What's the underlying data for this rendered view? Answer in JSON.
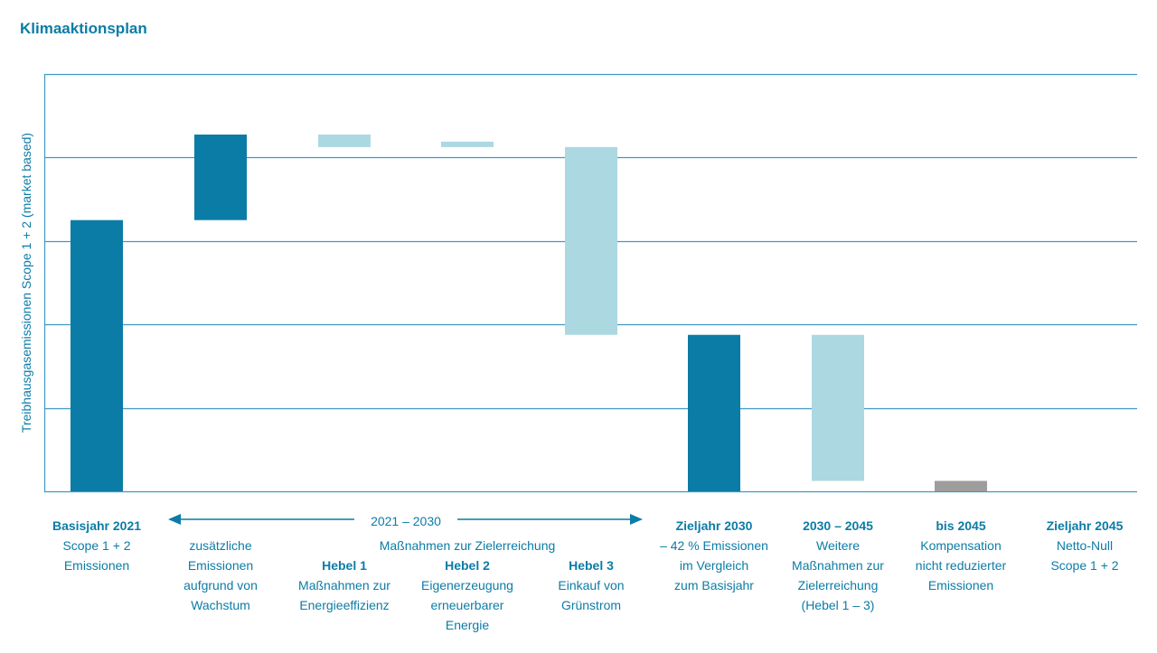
{
  "chart_data": {
    "type": "bar",
    "title": "Klimaaktionsplan",
    "xlabel": "",
    "ylabel": "Treibhausgasemissionen Scope 1 + 2 (market based)",
    "ylim": [
      0,
      100
    ],
    "grid": true,
    "colors": {
      "dark": "#0b7ca6",
      "light": "#acd8e2",
      "gray": "#9d9d9d",
      "grid": "#3e9ac4",
      "text": "#0b7ca6"
    },
    "bars": [
      {
        "low": 0,
        "high": 65,
        "color": "dark"
      },
      {
        "low": 65,
        "high": 85.5,
        "color": "dark"
      },
      {
        "low": 82.5,
        "high": 85.5,
        "color": "light"
      },
      {
        "low": 82.5,
        "high": 83.8,
        "color": "light"
      },
      {
        "low": 37.5,
        "high": 82.5,
        "color": "light"
      },
      {
        "low": 0,
        "high": 37.5,
        "color": "dark"
      },
      {
        "low": 2.5,
        "high": 37.5,
        "color": "light"
      },
      {
        "low": 0,
        "high": 2.5,
        "color": "gray"
      }
    ],
    "categories": [
      {
        "lines": [
          "Basisjahr 2021",
          "Scope 1 + 2",
          "Emissionen"
        ],
        "bold": [
          0
        ]
      },
      {
        "lines": [
          "",
          "zusätzliche",
          "Emissionen",
          "aufgrund von",
          "Wachstum"
        ],
        "bold": []
      },
      {
        "lines": [
          "",
          "",
          "Hebel 1",
          "Maßnahmen zur",
          "Energieeffizienz"
        ],
        "bold": [
          2
        ]
      },
      {
        "lines": [
          "",
          "",
          "Hebel 2",
          "Eigenerzeugung",
          "erneuerbarer",
          "Energie"
        ],
        "bold": [
          2
        ]
      },
      {
        "lines": [
          "",
          "",
          "Hebel 3",
          "Einkauf von",
          "Grünstrom"
        ],
        "bold": [
          2
        ]
      },
      {
        "lines": [
          "Zieljahr 2030",
          "– 42 % Emissionen",
          "im Vergleich",
          "zum Basisjahr"
        ],
        "bold": [
          0
        ]
      },
      {
        "lines": [
          "2030 – 2045",
          "Weitere",
          "Maßnahmen zur",
          "Zielerreichung",
          "(Hebel 1 – 3)"
        ],
        "bold": [
          0
        ]
      },
      {
        "lines": [
          "bis 2045",
          "Kompensation",
          "nicht reduzierter",
          "Emissionen"
        ],
        "bold": [
          0
        ]
      },
      {
        "lines": [
          "Zieljahr 2045",
          "Netto-Null",
          "Scope 1 + 2"
        ],
        "bold": [
          0
        ]
      }
    ],
    "period": {
      "label": "2021 – 2030",
      "sublabel": "Maßnahmen zur Zielerreichung"
    }
  }
}
